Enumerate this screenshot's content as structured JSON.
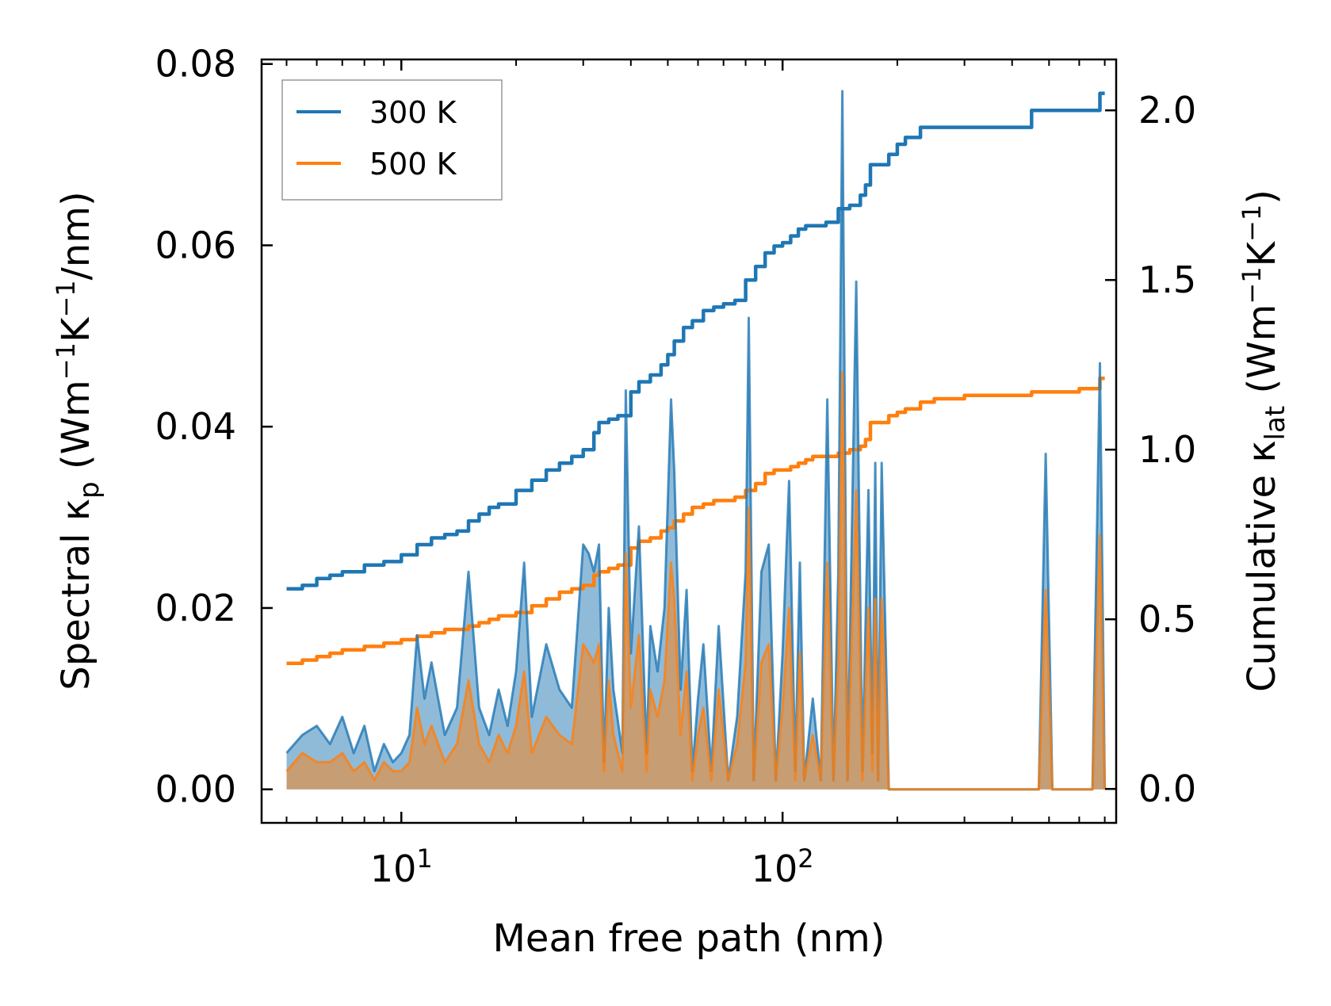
{
  "chart_data": {
    "type": "line",
    "title": "",
    "xlabel": "Mean free path (nm)",
    "xscale": "log",
    "xlim": [
      4.3,
      750
    ],
    "x_tick_labels": [
      {
        "value": 10,
        "base": "10",
        "exp": "1"
      },
      {
        "value": 100,
        "base": "10",
        "exp": "2"
      }
    ],
    "left_axis": {
      "label_main": "Spectral κ",
      "label_sub": "p",
      "label_unit_prefix": " (Wm",
      "label_unit_sup1": "−1",
      "label_unit_mid": "K",
      "label_unit_sup2": "−1",
      "label_unit_suffix": "/nm)",
      "ylim": [
        -0.0037,
        0.0805
      ],
      "ticks": [
        0.0,
        0.02,
        0.04,
        0.06,
        0.08
      ],
      "tick_labels": [
        "0.00",
        "0.02",
        "0.04",
        "0.06",
        "0.08"
      ]
    },
    "right_axis": {
      "label_main": "Cumulative κ",
      "label_sub": "lat",
      "label_unit_prefix": " (Wm",
      "label_unit_sup1": "−1",
      "label_unit_mid": "K",
      "label_unit_sup2": "−1",
      "label_unit_suffix": ")",
      "ylim": [
        -0.1,
        2.15
      ],
      "ticks": [
        0.0,
        0.5,
        1.0,
        1.5,
        2.0
      ],
      "tick_labels": [
        "0.0",
        "0.5",
        "1.0",
        "1.5",
        "2.0"
      ]
    },
    "legend": {
      "position": "top-left",
      "entries": [
        {
          "label": "300 K",
          "color": "#1f77b4"
        },
        {
          "label": "500 K",
          "color": "#ff7f0e"
        }
      ]
    },
    "series": [
      {
        "name": "300 K",
        "color": "#1f77b4",
        "cumulative": {
          "x": [
            5,
            5.5,
            6,
            6.5,
            7,
            8,
            9,
            10,
            11,
            12,
            13,
            14,
            15,
            16,
            17,
            18,
            20,
            22,
            24,
            26,
            28,
            30,
            32,
            33,
            35,
            37,
            40,
            42,
            45,
            48,
            50,
            52,
            55,
            58,
            62,
            66,
            70,
            75,
            80,
            85,
            90,
            95,
            100,
            105,
            110,
            115,
            120,
            130,
            140,
            150,
            160,
            165,
            170,
            175,
            180,
            190,
            200,
            210,
            230,
            250,
            300,
            350,
            400,
            450,
            500,
            550,
            600,
            650,
            680,
            700
          ],
          "y": [
            0.59,
            0.6,
            0.62,
            0.63,
            0.64,
            0.66,
            0.67,
            0.69,
            0.72,
            0.74,
            0.75,
            0.76,
            0.79,
            0.81,
            0.83,
            0.84,
            0.88,
            0.91,
            0.94,
            0.96,
            0.98,
            1.0,
            1.05,
            1.08,
            1.09,
            1.1,
            1.17,
            1.2,
            1.22,
            1.25,
            1.28,
            1.32,
            1.36,
            1.38,
            1.41,
            1.42,
            1.43,
            1.44,
            1.5,
            1.54,
            1.58,
            1.6,
            1.61,
            1.63,
            1.65,
            1.66,
            1.66,
            1.67,
            1.71,
            1.72,
            1.75,
            1.78,
            1.84,
            1.84,
            1.84,
            1.87,
            1.9,
            1.92,
            1.95,
            1.95,
            1.95,
            1.95,
            1.95,
            2.0,
            2.0,
            2.0,
            2.0,
            2.0,
            2.05,
            2.05
          ]
        },
        "spectral": {
          "x": [
            5,
            5.5,
            6,
            6.5,
            7,
            7.5,
            8,
            8.5,
            9,
            9.5,
            10,
            10.5,
            11,
            11.5,
            12,
            13,
            14,
            15,
            16,
            17,
            18,
            19,
            20,
            21,
            22,
            24,
            26,
            28,
            30,
            31,
            32,
            33,
            34,
            35,
            36,
            38,
            38.8,
            40,
            42,
            44,
            45,
            47,
            49,
            51,
            52,
            54,
            56,
            58,
            60,
            62,
            65,
            68,
            72,
            76,
            80,
            81.5,
            84,
            88,
            92,
            96,
            100,
            104,
            108,
            111,
            114,
            120,
            126,
            131,
            136,
            140,
            143.5,
            148,
            156,
            162,
            168,
            172,
            175,
            178,
            182,
            190,
            196,
            200,
            206,
            212,
            218,
            226,
            236,
            243,
            250,
            260,
            300,
            400,
            470,
            490,
            510,
            650,
            680,
            700
          ],
          "y": [
            0.004,
            0.006,
            0.007,
            0.005,
            0.008,
            0.004,
            0.007,
            0.002,
            0.005,
            0.003,
            0.004,
            0.006,
            0.017,
            0.01,
            0.014,
            0.006,
            0.009,
            0.024,
            0.009,
            0.006,
            0.011,
            0.007,
            0.013,
            0.025,
            0.008,
            0.016,
            0.011,
            0.009,
            0.027,
            0.026,
            0.024,
            0.027,
            0.003,
            0.02,
            0.011,
            0.004,
            0.044,
            0.015,
            0.029,
            0.004,
            0.018,
            0.013,
            0.02,
            0.043,
            0.035,
            0.011,
            0.022,
            0.002,
            0.01,
            0.016,
            0.002,
            0.018,
            0.001,
            0.008,
            0.024,
            0.052,
            0.001,
            0.024,
            0.027,
            0.001,
            0.015,
            0.034,
            0.002,
            0.025,
            0.001,
            0.01,
            0.001,
            0.043,
            0.001,
            0.024,
            0.077,
            0.001,
            0.056,
            0.002,
            0.033,
            0.004,
            0.036,
            0.001,
            0.036,
            0.0,
            0.0,
            0.0,
            0.0,
            0.0,
            0.0,
            0.0,
            0.0,
            0.0,
            0.0,
            0.0,
            0.0,
            0.0,
            0.0,
            0.037,
            0.0,
            0.0,
            0.047,
            0.0
          ]
        }
      },
      {
        "name": "500 K",
        "color": "#ff7f0e",
        "cumulative": {
          "x": [
            5,
            5.5,
            6,
            6.5,
            7,
            8,
            9,
            10,
            11,
            12,
            13,
            14,
            15,
            16,
            17,
            18,
            20,
            22,
            24,
            26,
            28,
            30,
            32,
            33,
            35,
            37,
            40,
            42,
            45,
            48,
            50,
            52,
            55,
            58,
            62,
            66,
            70,
            75,
            80,
            85,
            90,
            95,
            100,
            105,
            110,
            115,
            120,
            130,
            140,
            150,
            160,
            165,
            170,
            175,
            180,
            190,
            200,
            210,
            230,
            250,
            300,
            350,
            400,
            450,
            500,
            550,
            600,
            650,
            680,
            700
          ],
          "y": [
            0.37,
            0.38,
            0.39,
            0.4,
            0.41,
            0.42,
            0.43,
            0.44,
            0.45,
            0.46,
            0.47,
            0.47,
            0.48,
            0.49,
            0.5,
            0.51,
            0.52,
            0.54,
            0.56,
            0.58,
            0.59,
            0.6,
            0.63,
            0.64,
            0.65,
            0.66,
            0.71,
            0.73,
            0.74,
            0.76,
            0.77,
            0.79,
            0.81,
            0.83,
            0.84,
            0.85,
            0.85,
            0.86,
            0.88,
            0.9,
            0.93,
            0.94,
            0.94,
            0.95,
            0.96,
            0.97,
            0.98,
            0.98,
            0.99,
            1.0,
            1.01,
            1.03,
            1.08,
            1.08,
            1.08,
            1.1,
            1.11,
            1.12,
            1.14,
            1.15,
            1.16,
            1.16,
            1.16,
            1.17,
            1.17,
            1.17,
            1.18,
            1.18,
            1.21,
            1.21
          ]
        },
        "spectral": {
          "x": [
            5,
            5.5,
            6,
            6.5,
            7,
            7.5,
            8,
            8.5,
            9,
            9.5,
            10,
            10.5,
            11,
            11.5,
            12,
            13,
            14,
            15,
            16,
            17,
            18,
            19,
            20,
            21,
            22,
            24,
            26,
            28,
            30,
            31,
            32,
            33,
            34,
            35,
            36,
            38,
            38.8,
            40,
            42,
            44,
            45,
            47,
            49,
            51,
            52,
            54,
            56,
            58,
            60,
            62,
            65,
            68,
            72,
            76,
            80,
            81.5,
            84,
            88,
            92,
            96,
            100,
            104,
            108,
            111,
            114,
            120,
            126,
            131,
            136,
            140,
            143.5,
            148,
            156,
            162,
            168,
            172,
            175,
            178,
            182,
            190,
            196,
            200,
            206,
            212,
            218,
            226,
            236,
            243,
            250,
            260,
            300,
            400,
            470,
            490,
            510,
            650,
            680,
            700
          ],
          "y": [
            0.002,
            0.004,
            0.003,
            0.003,
            0.004,
            0.002,
            0.003,
            0.001,
            0.003,
            0.002,
            0.002,
            0.003,
            0.009,
            0.005,
            0.007,
            0.003,
            0.005,
            0.012,
            0.005,
            0.003,
            0.006,
            0.004,
            0.007,
            0.013,
            0.004,
            0.008,
            0.006,
            0.005,
            0.016,
            0.015,
            0.014,
            0.016,
            0.002,
            0.012,
            0.006,
            0.002,
            0.026,
            0.009,
            0.017,
            0.002,
            0.011,
            0.008,
            0.012,
            0.025,
            0.021,
            0.006,
            0.013,
            0.001,
            0.006,
            0.009,
            0.001,
            0.011,
            0.001,
            0.005,
            0.014,
            0.031,
            0.001,
            0.014,
            0.016,
            0.001,
            0.009,
            0.02,
            0.001,
            0.015,
            0.001,
            0.006,
            0.001,
            0.025,
            0.001,
            0.014,
            0.046,
            0.001,
            0.033,
            0.001,
            0.02,
            0.002,
            0.021,
            0.001,
            0.021,
            0.0,
            0.0,
            0.0,
            0.0,
            0.0,
            0.0,
            0.0,
            0.0,
            0.0,
            0.0,
            0.0,
            0.0,
            0.0,
            0.0,
            0.022,
            0.0,
            0.0,
            0.028,
            0.0
          ]
        }
      }
    ]
  }
}
